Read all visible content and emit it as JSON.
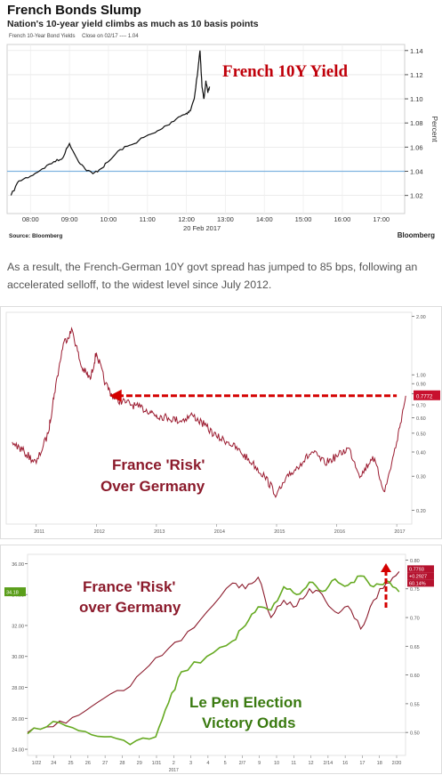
{
  "chart1": {
    "title": "French Bonds Slump",
    "subtitle": "Nation's 10-year yield climbs as much as 10 basis points",
    "legend": [
      "French 10-Year Bond Yields",
      "Close on 02/17 ---- 1.04"
    ],
    "annotation": "French 10Y Yield",
    "ylabel": "Percent",
    "date_label": "20 Feb 2017",
    "source": "Source: Bloomberg",
    "brand": "Bloomberg",
    "colors": {
      "line": "#111111",
      "close_line": "#7fb3e0",
      "annotation": "#c0000a"
    }
  },
  "paragraph": "As a result, the French-German 10Y govt spread has jumped to 85 bps, following an accelerated selloff, to the widest level since July 2012.",
  "chart2": {
    "annotation_line1": "France 'Risk'",
    "annotation_line2": "Over Germany",
    "last_value": "0.7772",
    "colors": {
      "series": "#9b1b30",
      "arrow": "#d40000",
      "text": "#8b1a2b"
    }
  },
  "chart3": {
    "annotation1_line1": "France 'Risk'",
    "annotation1_line2": "over Germany",
    "annotation2_line1": "Le Pen Election",
    "annotation2_line2": "Victory Odds",
    "left_badge": "34.18",
    "right_badges": [
      "0.7793",
      "+0.2927",
      "60.14%"
    ],
    "year_label": "2017",
    "colors": {
      "risk": "#8b1a2b",
      "odds": "#66aa22",
      "odds_text": "#3a7a10",
      "arrow": "#d40000"
    }
  },
  "chart_data": [
    {
      "type": "line",
      "title": "French Bonds Slump",
      "subtitle": "Nation's 10-year yield climbs as much as 10 basis points",
      "ylabel": "Percent",
      "xlabel": "20 Feb 2017",
      "x_ticks": [
        "08:00",
        "09:00",
        "10:00",
        "11:00",
        "12:00",
        "13:00",
        "14:00",
        "15:00",
        "16:00",
        "17:00"
      ],
      "y_ticks": [
        1.02,
        1.04,
        1.06,
        1.08,
        1.1,
        1.12,
        1.14
      ],
      "ylim": [
        1.005,
        1.145
      ],
      "xlim": [
        7.4,
        17.6
      ],
      "series": [
        {
          "name": "French 10-Year Bond Yields",
          "x": [
            7.5,
            7.7,
            8.0,
            8.3,
            8.6,
            8.8,
            9.0,
            9.2,
            9.4,
            9.6,
            9.8,
            10.0,
            10.3,
            10.6,
            10.9,
            11.2,
            11.5,
            11.8,
            12.0,
            12.1,
            12.2,
            12.3,
            12.35,
            12.4,
            12.45,
            12.5,
            12.55,
            12.6
          ],
          "y": [
            1.02,
            1.032,
            1.036,
            1.042,
            1.048,
            1.05,
            1.063,
            1.05,
            1.042,
            1.038,
            1.042,
            1.048,
            1.058,
            1.062,
            1.068,
            1.072,
            1.078,
            1.085,
            1.088,
            1.09,
            1.1,
            1.125,
            1.14,
            1.11,
            1.1,
            1.115,
            1.105,
            1.11
          ]
        },
        {
          "name": "Close on 02/17",
          "x": [
            7.4,
            17.6
          ],
          "y": [
            1.04,
            1.04
          ]
        }
      ],
      "grid": true
    },
    {
      "type": "line",
      "x_ticks": [
        "2011",
        "2012",
        "2013",
        "2014",
        "2015",
        "2016",
        "2017"
      ],
      "y_ticks": [
        0.2,
        0.3,
        0.4,
        0.5,
        0.6,
        0.7,
        0.8,
        0.9,
        1.0,
        2.0
      ],
      "series": [
        {
          "name": "France 'Risk' Over Germany",
          "x": [
            2010.6,
            2010.8,
            2011.0,
            2011.2,
            2011.3,
            2011.45,
            2011.6,
            2011.75,
            2011.9,
            2012.0,
            2012.15,
            2012.3,
            2012.5,
            2012.7,
            2012.9,
            2013.0,
            2013.2,
            2013.4,
            2013.6,
            2013.8,
            2014.0,
            2014.2,
            2014.4,
            2014.6,
            2014.8,
            2015.0,
            2015.2,
            2015.4,
            2015.6,
            2015.8,
            2016.0,
            2016.2,
            2016.4,
            2016.6,
            2016.8,
            2017.0,
            2017.15
          ],
          "y": [
            0.45,
            0.4,
            0.35,
            0.5,
            0.8,
            1.45,
            1.7,
            1.1,
            0.95,
            1.3,
            0.9,
            0.75,
            0.72,
            0.68,
            0.65,
            0.62,
            0.6,
            0.58,
            0.62,
            0.55,
            0.48,
            0.45,
            0.4,
            0.35,
            0.3,
            0.24,
            0.3,
            0.35,
            0.4,
            0.35,
            0.38,
            0.42,
            0.3,
            0.38,
            0.25,
            0.45,
            0.78
          ]
        }
      ],
      "last_value": 0.7772
    },
    {
      "type": "line",
      "x_ticks": [
        "1/22",
        "24",
        "25",
        "26",
        "27",
        "28",
        "29",
        "1/31",
        "2",
        "3",
        "4",
        "5",
        "2/7",
        "9",
        "10",
        "11",
        "12",
        "2/14",
        "16",
        "17",
        "18",
        "2/20"
      ],
      "y_ticks_left": [
        24.0,
        26.0,
        28.0,
        30.0,
        32.0,
        34.0,
        36.0
      ],
      "y_ticks_right": [
        0.5,
        0.55,
        0.6,
        0.65,
        0.7,
        0.75,
        0.8
      ],
      "series": [
        {
          "name": "France 'Risk' over Germany",
          "x": [
            0,
            2,
            4,
            6,
            8,
            10,
            12,
            14,
            16,
            17,
            18,
            19,
            20,
            21,
            22,
            23,
            24,
            25,
            26,
            27,
            28,
            29
          ],
          "y": [
            0.5,
            0.51,
            0.53,
            0.56,
            0.58,
            0.63,
            0.66,
            0.71,
            0.76,
            0.75,
            0.77,
            0.7,
            0.73,
            0.72,
            0.75,
            0.74,
            0.71,
            0.72,
            0.68,
            0.73,
            0.76,
            0.78
          ]
        },
        {
          "name": "Le Pen Election Victory Odds",
          "x": [
            0,
            2,
            4,
            6,
            8,
            10,
            11,
            12,
            14,
            16,
            17,
            18,
            19,
            20,
            21,
            22,
            23,
            24,
            25,
            26,
            27,
            28,
            29
          ],
          "y": [
            25.0,
            25.8,
            25.2,
            24.8,
            24.3,
            24.8,
            27.0,
            29.0,
            30.0,
            31.0,
            32.0,
            33.2,
            33.0,
            34.5,
            34.0,
            34.8,
            34.2,
            35.0,
            34.6,
            35.2,
            34.5,
            34.9,
            34.18
          ]
        }
      ]
    }
  ]
}
